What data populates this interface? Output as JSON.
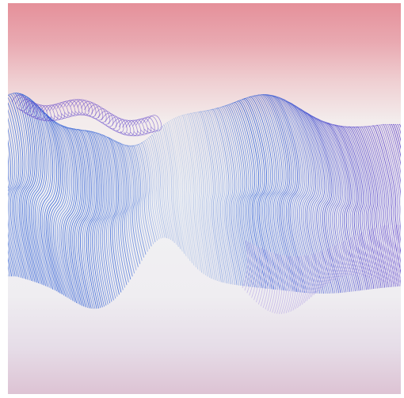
{
  "artwork": {
    "kind": "generative-wave-art",
    "description_free": true,
    "background_gradient": {
      "top": "#e5909a",
      "upper": "#efcfd2",
      "middle": "#f2f2f4",
      "bottom": "#ddc3d4"
    },
    "ribbon_colors": {
      "blue": "#2f5fd6",
      "light": "#c9d6ea",
      "violet": "#5a3cc8",
      "lavender": "#b7a6e6"
    }
  }
}
